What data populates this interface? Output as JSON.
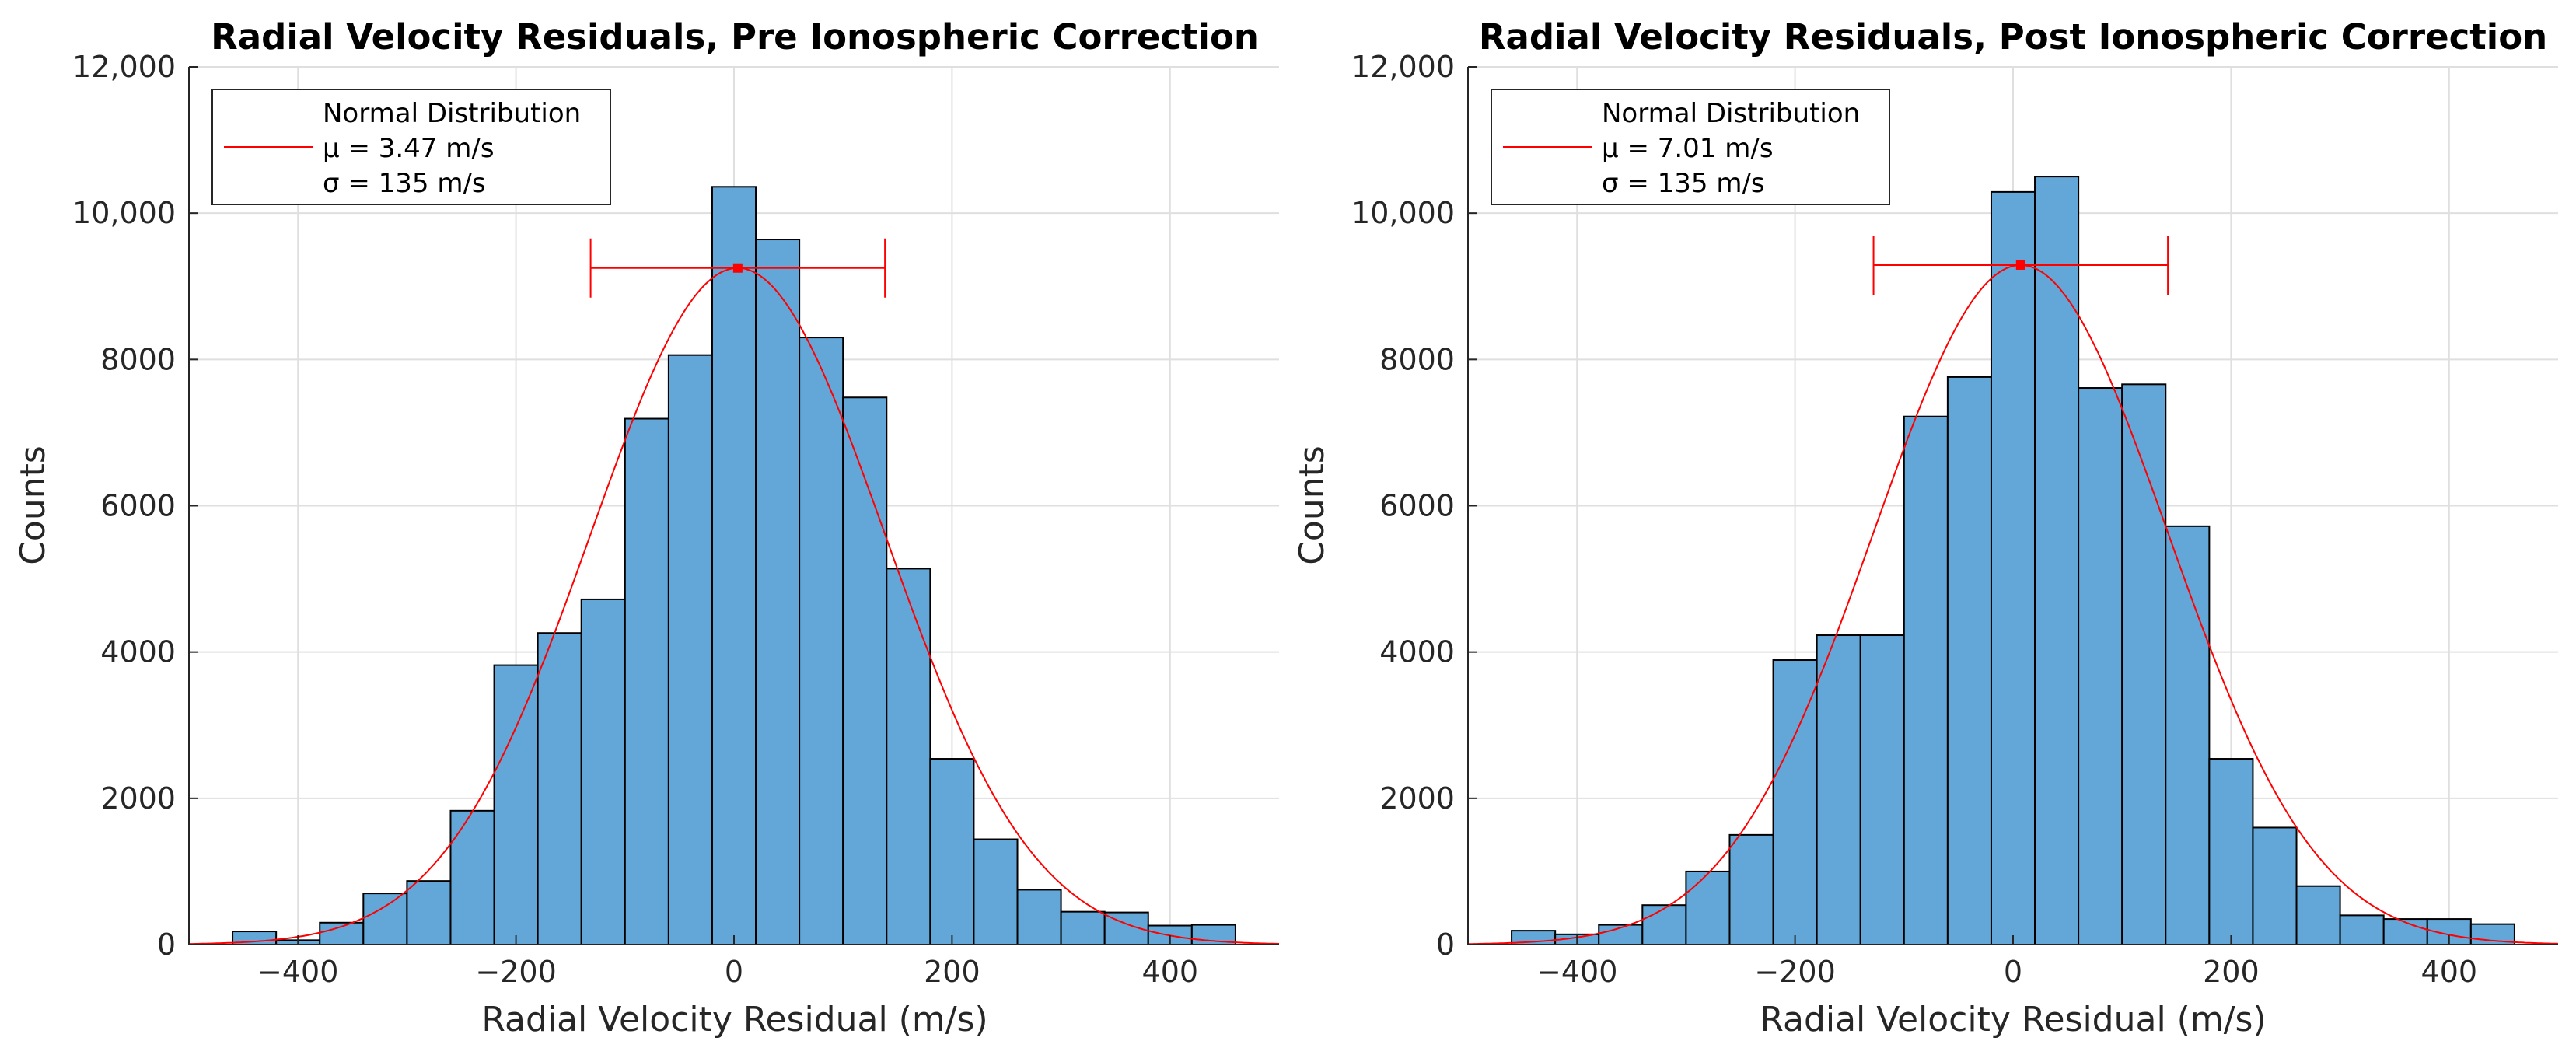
{
  "colors": {
    "bar_fill": "#63a7d8",
    "bar_edge": "#000000",
    "fit_line": "#ff0000",
    "grid": "#dfdfdf",
    "axis": "#262626"
  },
  "chart_data": [
    {
      "type": "bar",
      "title": "Radial Velocity Residuals, Pre Ionospheric Correction",
      "xlabel": "Radial Velocity Residual (m/s)",
      "ylabel": "Counts",
      "xlim": [
        -500,
        500
      ],
      "ylim": [
        0,
        12000
      ],
      "grid": true,
      "xticks": [
        -400,
        -200,
        0,
        200,
        400
      ],
      "xtick_labels": [
        "−400",
        "−200",
        "0",
        "200",
        "400"
      ],
      "yticks": [
        0,
        2000,
        4000,
        6000,
        8000,
        10000,
        12000
      ],
      "ytick_labels": [
        "0",
        "2000",
        "4000",
        "6000",
        "8000",
        "10,000",
        "12,000"
      ],
      "bin_edges": [
        -460,
        -420,
        -380,
        -340,
        -300,
        -260,
        -220,
        -180,
        -140,
        -100,
        -60,
        -20,
        20,
        60,
        100,
        140,
        180,
        220,
        260,
        300,
        340,
        380,
        420,
        460
      ],
      "values": [
        180,
        60,
        300,
        700,
        870,
        1830,
        3820,
        4260,
        4720,
        7190,
        8060,
        10360,
        9640,
        8300,
        7480,
        5140,
        2540,
        1440,
        750,
        450,
        440,
        260,
        270
      ],
      "fit": {
        "mu": 3.47,
        "sigma": 135,
        "peak": 9250
      },
      "legend": {
        "location": "top-left",
        "entries": [
          "Normal Distribution",
          "μ = 3.47 m/s",
          "σ = 135 m/s"
        ]
      }
    },
    {
      "type": "bar",
      "title": "Radial Velocity Residuals, Post Ionospheric Correction",
      "xlabel": "Radial Velocity Residual (m/s)",
      "ylabel": "Counts",
      "xlim": [
        -500,
        500
      ],
      "ylim": [
        0,
        12000
      ],
      "grid": true,
      "xticks": [
        -400,
        -200,
        0,
        200,
        400
      ],
      "xtick_labels": [
        "−400",
        "−200",
        "0",
        "200",
        "400"
      ],
      "yticks": [
        0,
        2000,
        4000,
        6000,
        8000,
        10000,
        12000
      ],
      "ytick_labels": [
        "0",
        "2000",
        "4000",
        "6000",
        "8000",
        "10,000",
        "12,000"
      ],
      "bin_edges": [
        -460,
        -420,
        -380,
        -340,
        -300,
        -260,
        -220,
        -180,
        -140,
        -100,
        -60,
        -20,
        20,
        60,
        100,
        140,
        180,
        220,
        260,
        300,
        340,
        380,
        420,
        460
      ],
      "values": [
        190,
        140,
        270,
        540,
        1000,
        1500,
        3890,
        4230,
        4230,
        7220,
        7760,
        10290,
        10500,
        7610,
        7660,
        5720,
        2540,
        1600,
        800,
        400,
        350,
        350,
        280
      ],
      "fit": {
        "mu": 7.01,
        "sigma": 135,
        "peak": 9290
      },
      "legend": {
        "location": "top-left",
        "entries": [
          "Normal Distribution",
          "μ = 7.01 m/s",
          "σ = 135 m/s"
        ]
      }
    }
  ]
}
